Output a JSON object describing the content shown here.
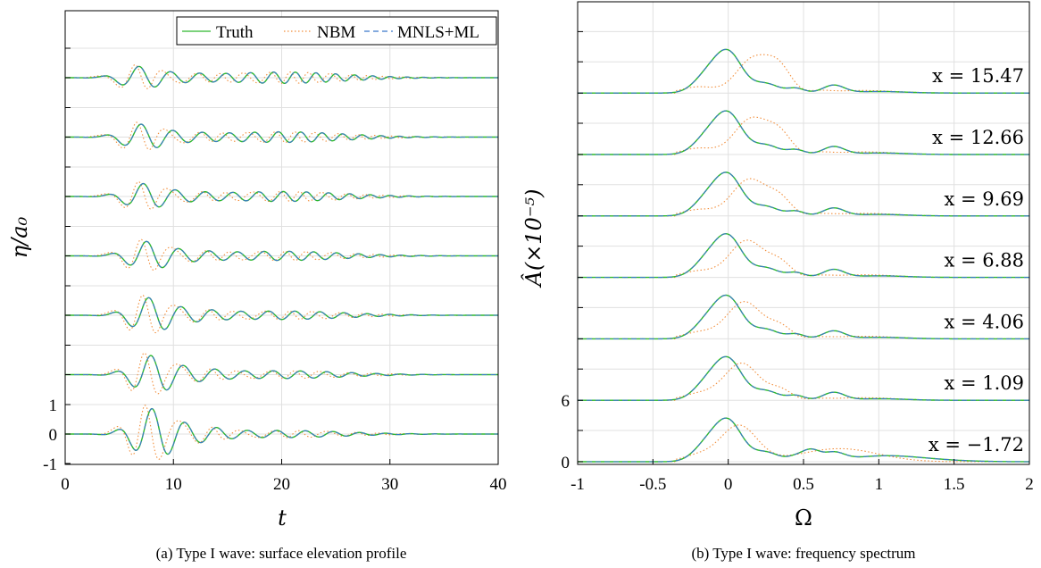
{
  "colors": {
    "truth": "#2db82d",
    "nbm": "#f28e3b",
    "ml": "#3a78c9",
    "grid": "#e0e0e0"
  },
  "legend": {
    "truth": "Truth",
    "nbm": "NBM",
    "ml": "MNLS+ML"
  },
  "chart_data": [
    {
      "type": "line",
      "caption": "(a) Type I wave: surface elevation profile",
      "xlabel": "t",
      "ylabel": "η/a₀",
      "xlim": [
        0,
        40
      ],
      "xticks": [
        "0",
        "10",
        "20",
        "30",
        "40"
      ],
      "yticks": [
        "1",
        "0",
        "-1"
      ],
      "grid": true,
      "legend_position": "top-right",
      "series": [
        {
          "name": "Truth"
        },
        {
          "name": "NBM"
        },
        {
          "name": "MNLS+ML"
        }
      ],
      "traces": [
        {
          "offset_index": 0,
          "peak_t": 8.0,
          "amplitude": 0.8
        },
        {
          "offset_index": 1,
          "peak_t": 7.9,
          "amplitude": 0.6
        },
        {
          "offset_index": 2,
          "peak_t": 7.7,
          "amplitude": 0.55
        },
        {
          "offset_index": 3,
          "peak_t": 7.5,
          "amplitude": 0.45
        },
        {
          "offset_index": 4,
          "peak_t": 7.2,
          "amplitude": 0.4
        },
        {
          "offset_index": 5,
          "peak_t": 7.0,
          "amplitude": 0.4
        },
        {
          "offset_index": 6,
          "peak_t": 6.8,
          "amplitude": 0.35
        }
      ]
    },
    {
      "type": "line",
      "caption": "(b) Type I wave: frequency spectrum",
      "xlabel": "Ω",
      "ylabel": "Â(×10⁻⁵)",
      "xlim": [
        -1,
        2
      ],
      "xticks": [
        "-1",
        "-0.5",
        "0",
        "0.5",
        "1",
        "1.5",
        "2"
      ],
      "yticks": [
        "6",
        "0"
      ],
      "grid": true,
      "annotations": [
        "x = −1.72",
        "x = 1.09",
        "x = 4.06",
        "x = 6.88",
        "x = 9.69",
        "x = 12.66",
        "x = 15.47"
      ],
      "series": [
        {
          "name": "Truth"
        },
        {
          "name": "NBM"
        },
        {
          "name": "MNLS+ML"
        }
      ],
      "spectra": [
        {
          "x_position": -1.72,
          "peak_omega": 0.0,
          "peak": 3.9
        },
        {
          "x_position": 1.09,
          "peak_omega": 0.0,
          "peak": 3.9
        },
        {
          "x_position": 4.06,
          "peak_omega": 0.0,
          "peak": 3.9
        },
        {
          "x_position": 6.88,
          "peak_omega": 0.0,
          "peak": 3.9
        },
        {
          "x_position": 9.69,
          "peak_omega": 0.0,
          "peak": 3.9
        },
        {
          "x_position": 12.66,
          "peak_omega": 0.0,
          "peak": 3.9
        },
        {
          "x_position": 15.47,
          "peak_omega": 0.0,
          "peak": 3.9
        }
      ]
    }
  ]
}
